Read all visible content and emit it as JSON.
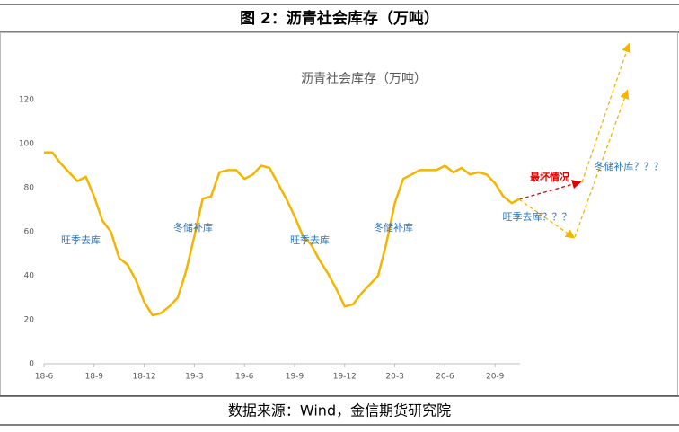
{
  "header": {
    "title": "图 2：沥青社会库存（万吨）"
  },
  "chart_data": {
    "type": "line",
    "title": "沥青社会库存（万吨）",
    "categories": [
      "18-6",
      null,
      null,
      null,
      null,
      null,
      "18-9",
      null,
      null,
      null,
      null,
      null,
      "18-12",
      null,
      null,
      null,
      null,
      null,
      "19-3",
      null,
      null,
      null,
      null,
      null,
      "19-6",
      null,
      null,
      null,
      null,
      null,
      "19-9",
      null,
      null,
      null,
      null,
      null,
      "19-12",
      null,
      null,
      null,
      null,
      null,
      "20-3",
      null,
      null,
      null,
      null,
      null,
      "20-6",
      null,
      null,
      null,
      null,
      null,
      "20-9",
      null,
      null,
      null
    ],
    "series": [
      {
        "name": "沥青社会库存",
        "color": "#f5b400",
        "values": [
          96,
          96,
          91,
          87,
          83,
          85,
          76,
          65,
          60,
          48,
          45,
          38,
          28,
          22,
          23,
          26,
          30,
          42,
          58,
          75,
          76,
          87,
          88,
          88,
          84,
          86,
          90,
          89,
          82,
          75,
          67,
          58,
          54,
          47,
          41,
          34,
          26,
          27,
          32,
          36,
          40,
          55,
          73,
          84,
          86,
          88,
          88,
          88,
          90,
          87,
          89,
          86,
          87,
          86,
          82,
          76,
          73,
          75
        ]
      }
    ],
    "ylim": [
      0,
      120
    ],
    "yticks": [
      0,
      20,
      40,
      60,
      80,
      100,
      120
    ],
    "grid": false,
    "annotations": [
      {
        "text": "旺季去库",
        "color": "#2e75b6"
      },
      {
        "text": "冬储补库",
        "color": "#2e75b6"
      },
      {
        "text": "旺季去库",
        "color": "#2e75b6"
      },
      {
        "text": "冬储补库",
        "color": "#2e75b6"
      },
      {
        "text": "最坏情况",
        "color": "#e00000"
      },
      {
        "text": "旺季去库？？？",
        "color": "#2e75b6"
      },
      {
        "text": "冬储补库？？？",
        "color": "#2e75b6"
      }
    ]
  },
  "footer": {
    "source": "数据来源：Wind，金信期货研究院"
  }
}
